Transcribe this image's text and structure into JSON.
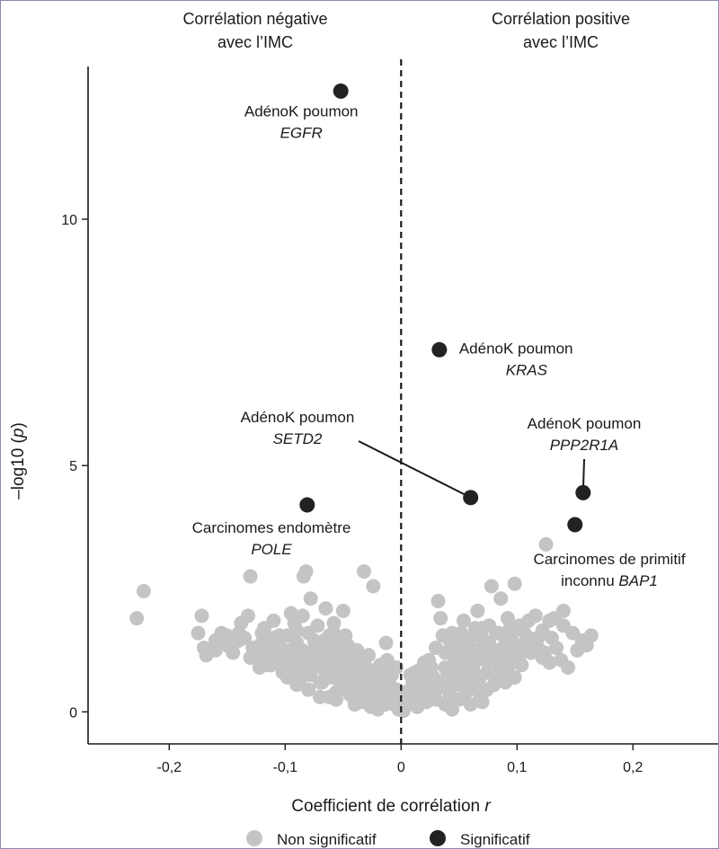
{
  "chart_data": {
    "type": "scatter",
    "xlabel": "Coefficient de corrélation",
    "xlabel_var": "r",
    "ylabel": "–log10 (",
    "ylabel_var": "p",
    "ylabel_end": ")",
    "xlim": [
      -0.27,
      0.275
    ],
    "ylim": [
      -0.65,
      13.1
    ],
    "x_ticks": [
      {
        "value": -0.2,
        "label": "-0,2"
      },
      {
        "value": -0.1,
        "label": "-0,1"
      },
      {
        "value": 0,
        "label": "0"
      },
      {
        "value": 0.1,
        "label": "0,1"
      },
      {
        "value": 0.2,
        "label": "0,2"
      }
    ],
    "y_ticks": [
      {
        "value": 0,
        "label": "0"
      },
      {
        "value": 5,
        "label": "5"
      },
      {
        "value": 10,
        "label": "10"
      }
    ],
    "region_labels": [
      {
        "lines": [
          "Corrélation négative",
          "avec l’IMC"
        ],
        "position": "top-left"
      },
      {
        "lines": [
          "Corrélation positive",
          "avec l’IMC"
        ],
        "position": "top-right"
      }
    ],
    "colors": {
      "non_significant": "#c4c4c6",
      "significant": "#222222",
      "zero_line": "#1a1a1a"
    },
    "legend": {
      "position": "bottom",
      "items": [
        {
          "label": "Non significatif",
          "color": "#c4c4c6"
        },
        {
          "label": "Significatif",
          "color": "#222222"
        }
      ]
    },
    "series": [
      {
        "name": "Significatif",
        "points": [
          {
            "x": -0.052,
            "y": 12.6,
            "label": "AdénoK poumon",
            "gene": "EGFR"
          },
          {
            "x": 0.033,
            "y": 7.35,
            "label": "AdénoK poumon",
            "gene": "KRAS"
          },
          {
            "x": 0.06,
            "y": 4.35,
            "label": "AdénoK poumon",
            "gene": "SETD2"
          },
          {
            "x": 0.157,
            "y": 4.45,
            "label": "AdénoK poumon",
            "gene": "PPP2R1A"
          },
          {
            "x": -0.081,
            "y": 4.2,
            "label": "Carcinomes endomètre",
            "gene": "POLE"
          },
          {
            "x": 0.15,
            "y": 3.8,
            "label": "Carcinomes de primitif inconnu",
            "gene": "BAP1"
          }
        ]
      },
      {
        "name": "Non significatif",
        "points": [
          [
            -0.228,
            1.9
          ],
          [
            -0.222,
            2.45
          ],
          [
            -0.175,
            1.6
          ],
          [
            -0.17,
            1.3
          ],
          [
            -0.172,
            1.95
          ],
          [
            -0.168,
            1.15
          ],
          [
            -0.16,
            1.45
          ],
          [
            -0.155,
            1.6
          ],
          [
            -0.15,
            1.35
          ],
          [
            -0.145,
            1.2
          ],
          [
            -0.14,
            1.6
          ],
          [
            -0.135,
            1.5
          ],
          [
            -0.138,
            1.8
          ],
          [
            -0.132,
            1.95
          ],
          [
            -0.13,
            2.75
          ],
          [
            -0.128,
            1.3
          ],
          [
            -0.125,
            1.1
          ],
          [
            -0.122,
            0.9
          ],
          [
            -0.12,
            1.4
          ],
          [
            -0.118,
            1.7
          ],
          [
            -0.115,
            1.25
          ],
          [
            -0.112,
            0.95
          ],
          [
            -0.11,
            1.5
          ],
          [
            -0.108,
            1.15
          ],
          [
            -0.105,
            1.35
          ],
          [
            -0.102,
            0.8
          ],
          [
            -0.1,
            1.05
          ],
          [
            -0.098,
            1.55
          ],
          [
            -0.096,
            1.25
          ],
          [
            -0.094,
            0.95
          ],
          [
            -0.092,
            1.8
          ],
          [
            -0.09,
            1.4
          ],
          [
            -0.088,
            1.1
          ],
          [
            -0.086,
            0.7
          ],
          [
            -0.084,
            2.75
          ],
          [
            -0.082,
            2.85
          ],
          [
            -0.08,
            1.6
          ],
          [
            -0.078,
            1.2
          ],
          [
            -0.076,
            0.9
          ],
          [
            -0.074,
            1.3
          ],
          [
            -0.072,
            1.75
          ],
          [
            -0.07,
            1.0
          ],
          [
            -0.068,
            0.6
          ],
          [
            -0.066,
            1.45
          ],
          [
            -0.064,
            1.1
          ],
          [
            -0.062,
            0.8
          ],
          [
            -0.06,
            1.25
          ],
          [
            -0.058,
            1.6
          ],
          [
            -0.056,
            0.95
          ],
          [
            -0.054,
            0.65
          ],
          [
            -0.052,
            1.15
          ],
          [
            -0.05,
            2.05
          ],
          [
            -0.048,
            0.85
          ],
          [
            -0.046,
            1.35
          ],
          [
            -0.044,
            0.55
          ],
          [
            -0.042,
            1.05
          ],
          [
            -0.04,
            0.75
          ],
          [
            -0.038,
            1.25
          ],
          [
            -0.036,
            0.45
          ],
          [
            -0.034,
            0.95
          ],
          [
            -0.032,
            2.85
          ],
          [
            -0.03,
            0.65
          ],
          [
            -0.028,
            1.15
          ],
          [
            -0.026,
            0.35
          ],
          [
            -0.024,
            2.55
          ],
          [
            -0.022,
            0.85
          ],
          [
            -0.02,
            0.5
          ],
          [
            -0.018,
            0.95
          ],
          [
            -0.016,
            0.25
          ],
          [
            -0.014,
            0.6
          ],
          [
            -0.012,
            1.05
          ],
          [
            -0.01,
            0.3
          ],
          [
            -0.008,
            0.75
          ],
          [
            -0.006,
            0.15
          ],
          [
            -0.004,
            0.45
          ],
          [
            -0.002,
            0.05
          ],
          [
            -0.15,
            1.55
          ],
          [
            -0.16,
            1.25
          ],
          [
            -0.11,
            1.85
          ],
          [
            -0.095,
            2.0
          ],
          [
            -0.09,
            1.65
          ],
          [
            -0.085,
            1.95
          ],
          [
            -0.078,
            2.3
          ],
          [
            -0.065,
            2.1
          ],
          [
            -0.058,
            1.8
          ],
          [
            -0.075,
            1.45
          ],
          [
            -0.068,
            1.3
          ],
          [
            -0.062,
            1.55
          ],
          [
            -0.055,
            1.35
          ],
          [
            -0.048,
            1.55
          ],
          [
            -0.042,
            1.25
          ],
          [
            -0.12,
            1.6
          ],
          [
            -0.13,
            1.1
          ],
          [
            -0.115,
            0.95
          ],
          [
            -0.105,
            1.55
          ],
          [
            -0.082,
            1.0
          ],
          [
            -0.072,
            0.95
          ],
          [
            -0.066,
            0.85
          ],
          [
            -0.06,
            0.7
          ],
          [
            -0.053,
            0.8
          ],
          [
            -0.046,
            0.6
          ],
          [
            -0.04,
            0.5
          ],
          [
            -0.034,
            0.7
          ],
          [
            -0.028,
            0.35
          ],
          [
            -0.022,
            0.25
          ],
          [
            -0.018,
            0.5
          ],
          [
            -0.014,
            0.15
          ],
          [
            -0.01,
            0.4
          ],
          [
            -0.006,
            0.2
          ],
          [
            -0.03,
            0.9
          ],
          [
            -0.036,
            1.05
          ],
          [
            -0.024,
            0.6
          ],
          [
            -0.044,
            0.35
          ],
          [
            -0.05,
            0.55
          ],
          [
            -0.056,
            0.4
          ],
          [
            -0.07,
            0.6
          ],
          [
            -0.078,
            0.75
          ],
          [
            -0.088,
            0.85
          ],
          [
            -0.098,
            0.7
          ],
          [
            -0.108,
            1.0
          ],
          [
            -0.124,
            1.3
          ],
          [
            -0.14,
            1.45
          ],
          [
            -0.034,
            0.2
          ],
          [
            -0.04,
            0.15
          ],
          [
            -0.026,
            0.1
          ],
          [
            -0.02,
            0.05
          ],
          [
            -0.012,
            0.2
          ],
          [
            -0.056,
            0.25
          ],
          [
            -0.062,
            0.3
          ],
          [
            -0.02,
            0.75
          ],
          [
            -0.015,
            0.95
          ],
          [
            -0.03,
            0.5
          ],
          [
            -0.035,
            0.85
          ],
          [
            -0.045,
            0.95
          ],
          [
            -0.05,
            1.0
          ],
          [
            -0.058,
            1.1
          ],
          [
            -0.065,
            1.05
          ],
          [
            -0.075,
            1.1
          ],
          [
            -0.085,
            1.25
          ],
          [
            -0.093,
            1.15
          ],
          [
            -0.1,
            1.2
          ],
          [
            -0.11,
            1.3
          ],
          [
            -0.118,
            1.15
          ],
          [
            -0.01,
            0.55
          ],
          [
            -0.005,
            0.35
          ],
          [
            -0.09,
            0.55
          ],
          [
            -0.08,
            0.45
          ],
          [
            -0.07,
            0.3
          ],
          [
            -0.004,
            0.9
          ],
          [
            -0.013,
            1.4
          ],
          [
            0.002,
            0.02
          ],
          [
            0.004,
            0.4
          ],
          [
            0.006,
            0.15
          ],
          [
            0.008,
            0.75
          ],
          [
            0.01,
            0.3
          ],
          [
            0.012,
            0.55
          ],
          [
            0.014,
            0.1
          ],
          [
            0.016,
            0.85
          ],
          [
            0.018,
            0.35
          ],
          [
            0.02,
            0.6
          ],
          [
            0.022,
            0.2
          ],
          [
            0.024,
            1.05
          ],
          [
            0.026,
            0.45
          ],
          [
            0.028,
            0.7
          ],
          [
            0.03,
            0.25
          ],
          [
            0.032,
            2.25
          ],
          [
            0.034,
            1.9
          ],
          [
            0.036,
            0.5
          ],
          [
            0.038,
            1.2
          ],
          [
            0.04,
            0.8
          ],
          [
            0.042,
            0.35
          ],
          [
            0.044,
            1.6
          ],
          [
            0.046,
            1.0
          ],
          [
            0.048,
            0.55
          ],
          [
            0.05,
            1.35
          ],
          [
            0.052,
            0.75
          ],
          [
            0.054,
            1.85
          ],
          [
            0.056,
            1.1
          ],
          [
            0.058,
            0.65
          ],
          [
            0.06,
            1.5
          ],
          [
            0.062,
            0.9
          ],
          [
            0.064,
            1.25
          ],
          [
            0.066,
            2.05
          ],
          [
            0.068,
            0.7
          ],
          [
            0.07,
            1.7
          ],
          [
            0.072,
            1.05
          ],
          [
            0.074,
            0.45
          ],
          [
            0.076,
            1.4
          ],
          [
            0.078,
            2.55
          ],
          [
            0.08,
            1.15
          ],
          [
            0.082,
            0.8
          ],
          [
            0.084,
            1.6
          ],
          [
            0.086,
            2.3
          ],
          [
            0.088,
            1.3
          ],
          [
            0.09,
            0.6
          ],
          [
            0.092,
            1.9
          ],
          [
            0.094,
            1.45
          ],
          [
            0.096,
            1.0
          ],
          [
            0.098,
            2.6
          ],
          [
            0.1,
            1.35
          ],
          [
            0.102,
            1.75
          ],
          [
            0.104,
            0.95
          ],
          [
            0.108,
            1.55
          ],
          [
            0.112,
            1.2
          ],
          [
            0.116,
            1.95
          ],
          [
            0.118,
            1.5
          ],
          [
            0.122,
            1.1
          ],
          [
            0.125,
            3.4
          ],
          [
            0.128,
            1.85
          ],
          [
            0.13,
            1.5
          ],
          [
            0.134,
            1.3
          ],
          [
            0.138,
            1.05
          ],
          [
            0.14,
            1.75
          ],
          [
            0.144,
            0.9
          ],
          [
            0.148,
            1.6
          ],
          [
            0.152,
            1.25
          ],
          [
            0.156,
            1.45
          ],
          [
            0.16,
            1.35
          ],
          [
            0.164,
            1.55
          ],
          [
            0.14,
            2.05
          ],
          [
            0.03,
            1.3
          ],
          [
            0.036,
            1.55
          ],
          [
            0.042,
            1.45
          ],
          [
            0.048,
            1.2
          ],
          [
            0.054,
            1.0
          ],
          [
            0.06,
            0.95
          ],
          [
            0.066,
            1.15
          ],
          [
            0.072,
            1.3
          ],
          [
            0.078,
            1.25
          ],
          [
            0.084,
            1.0
          ],
          [
            0.09,
            1.1
          ],
          [
            0.096,
            1.25
          ],
          [
            0.102,
            1.15
          ],
          [
            0.106,
            1.35
          ],
          [
            0.112,
            1.45
          ],
          [
            0.118,
            1.3
          ],
          [
            0.124,
            1.2
          ],
          [
            0.128,
            1.0
          ],
          [
            0.038,
            0.9
          ],
          [
            0.044,
            0.65
          ],
          [
            0.05,
            0.85
          ],
          [
            0.056,
            0.4
          ],
          [
            0.062,
            0.55
          ],
          [
            0.068,
            0.35
          ],
          [
            0.074,
            0.8
          ],
          [
            0.08,
            0.55
          ],
          [
            0.086,
            0.95
          ],
          [
            0.092,
            0.8
          ],
          [
            0.098,
            0.7
          ],
          [
            0.032,
            0.6
          ],
          [
            0.026,
            0.9
          ],
          [
            0.022,
            0.7
          ],
          [
            0.018,
            0.5
          ],
          [
            0.014,
            0.4
          ],
          [
            0.01,
            0.6
          ],
          [
            0.038,
            0.15
          ],
          [
            0.05,
            0.25
          ],
          [
            0.065,
            0.6
          ],
          [
            0.075,
            1.05
          ],
          [
            0.085,
            1.25
          ],
          [
            0.095,
            1.5
          ],
          [
            0.105,
            1.65
          ],
          [
            0.11,
            1.85
          ],
          [
            0.122,
            1.65
          ],
          [
            0.132,
            1.9
          ],
          [
            0.046,
            1.25
          ],
          [
            0.058,
            1.35
          ],
          [
            0.07,
            1.5
          ],
          [
            0.082,
            1.6
          ],
          [
            0.094,
            1.7
          ],
          [
            0.052,
            1.6
          ],
          [
            0.064,
            1.7
          ],
          [
            0.076,
            1.75
          ],
          [
            0.088,
            1.55
          ],
          [
            0.1,
            1.05
          ],
          [
            0.02,
            1.0
          ],
          [
            0.012,
            0.8
          ],
          [
            0.044,
            0.05
          ],
          [
            0.06,
            0.15
          ],
          [
            0.07,
            0.2
          ]
        ]
      }
    ]
  }
}
